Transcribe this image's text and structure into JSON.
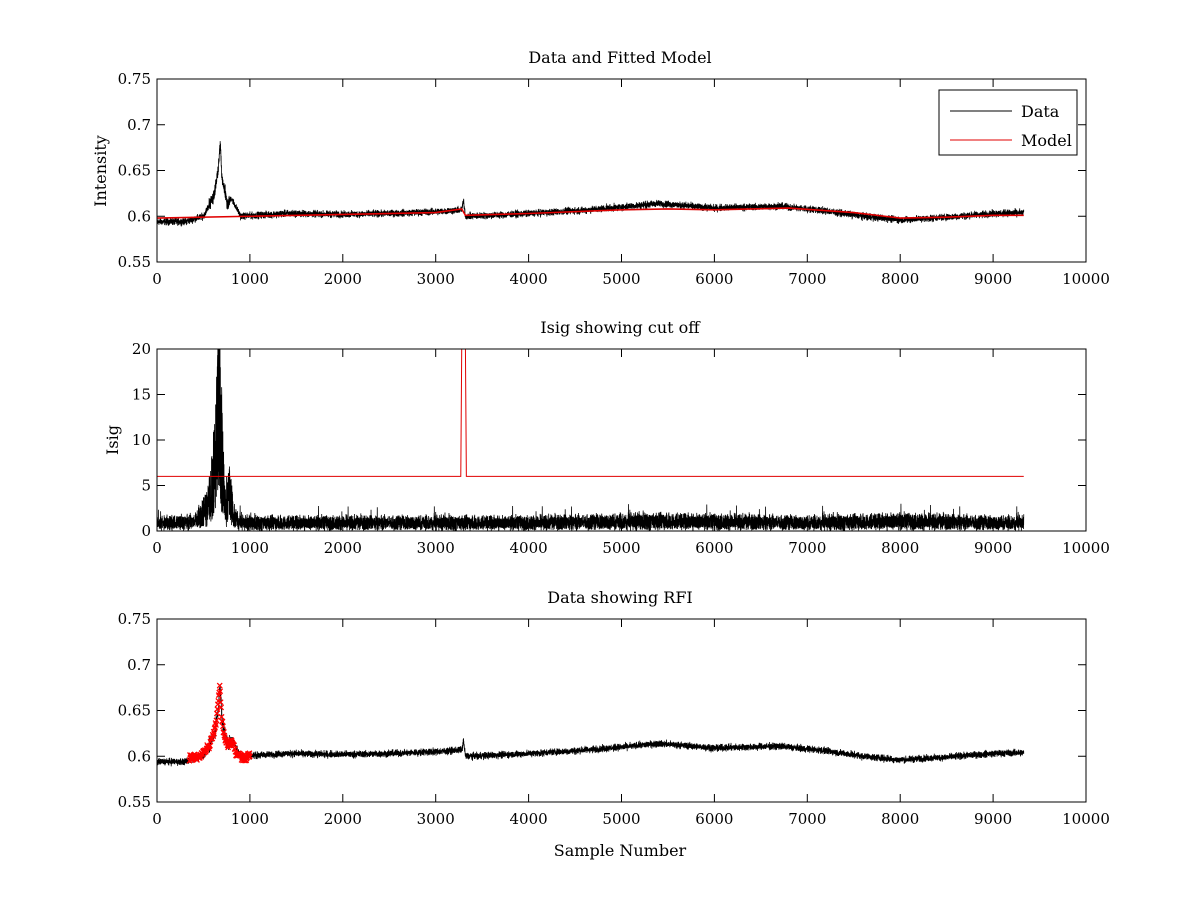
{
  "colors": {
    "data": "#000000",
    "model": "#e00000",
    "rfi": "#ff0000",
    "background": "#ffffff"
  },
  "chart_data": [
    {
      "type": "line",
      "title": "Data and Fitted Model",
      "xlabel": "",
      "ylabel": "Intensity",
      "xlim": [
        0,
        10000
      ],
      "ylim": [
        0.55,
        0.75
      ],
      "xticks": [
        "0",
        "1000",
        "2000",
        "3000",
        "4000",
        "5000",
        "6000",
        "7000",
        "8000",
        "9000",
        "10000"
      ],
      "yticks": [
        "0.55",
        "0.6",
        "0.65",
        "0.7",
        "0.75"
      ],
      "grid": false,
      "legend": {
        "placement": "top-right",
        "entries": [
          "Data",
          "Model"
        ]
      },
      "series": [
        {
          "name": "Data",
          "kind": "noisy",
          "x": [
            0,
            300,
            500,
            560,
            620,
            660,
            680,
            700,
            760,
            800,
            900,
            1400,
            2000,
            2500,
            3000,
            3280,
            3300,
            3320,
            3600,
            4000,
            4500,
            5000,
            5400,
            6000,
            6700,
            7200,
            7600,
            8000,
            8500,
            9000,
            9330
          ],
          "y": [
            0.594,
            0.594,
            0.6,
            0.612,
            0.625,
            0.652,
            0.678,
            0.64,
            0.612,
            0.62,
            0.6,
            0.603,
            0.602,
            0.603,
            0.605,
            0.607,
            0.617,
            0.6,
            0.601,
            0.603,
            0.606,
            0.61,
            0.614,
            0.609,
            0.611,
            0.606,
            0.6,
            0.596,
            0.599,
            0.603,
            0.604
          ],
          "noise": 0.0045
        },
        {
          "name": "Model",
          "kind": "smooth",
          "x": [
            0,
            1000,
            2000,
            3000,
            3280,
            3320,
            4000,
            5000,
            5500,
            6000,
            6800,
            7500,
            8000,
            8500,
            9000,
            9330
          ],
          "y": [
            0.598,
            0.6,
            0.602,
            0.604,
            0.608,
            0.601,
            0.603,
            0.607,
            0.608,
            0.607,
            0.609,
            0.604,
            0.598,
            0.599,
            0.601,
            0.601
          ]
        }
      ]
    },
    {
      "type": "line",
      "title": "Isig showing cut off",
      "xlabel": "",
      "ylabel": "Isig",
      "xlim": [
        0,
        10000
      ],
      "ylim": [
        0,
        20
      ],
      "xticks": [
        "0",
        "1000",
        "2000",
        "3000",
        "4000",
        "5000",
        "6000",
        "7000",
        "8000",
        "9000",
        "10000"
      ],
      "yticks": [
        "0",
        "5",
        "10",
        "15",
        "20"
      ],
      "grid": false,
      "series": [
        {
          "name": "Isig",
          "kind": "isig",
          "x": [
            0,
            400,
            550,
            600,
            640,
            670,
            700,
            730,
            780,
            820,
            900,
            2000,
            4000,
            5400,
            7000,
            8000,
            9000,
            9330
          ],
          "y": [
            1.0,
            1.1,
            3.0,
            6.0,
            11.0,
            18.5,
            9.0,
            3.0,
            5.0,
            2.0,
            1.0,
            1.0,
            1.0,
            1.2,
            1.0,
            1.2,
            1.0,
            1.0
          ]
        },
        {
          "name": "Cut off",
          "kind": "step",
          "x": [
            0,
            3270,
            3280,
            3320,
            3330,
            9330
          ],
          "y": [
            6,
            6,
            20,
            20,
            6,
            6
          ]
        }
      ]
    },
    {
      "type": "scatter",
      "title": "Data showing RFI",
      "xlabel": "Sample Number",
      "ylabel": "",
      "xlim": [
        0,
        10000
      ],
      "ylim": [
        0.55,
        0.75
      ],
      "xticks": [
        "0",
        "1000",
        "2000",
        "3000",
        "4000",
        "5000",
        "6000",
        "7000",
        "8000",
        "9000",
        "10000"
      ],
      "yticks": [
        "0.55",
        "0.6",
        "0.65",
        "0.7",
        "0.75"
      ],
      "grid": false,
      "series": [
        {
          "name": "Data",
          "kind": "noisy",
          "x": [
            0,
            300,
            500,
            560,
            620,
            660,
            680,
            700,
            760,
            800,
            900,
            1400,
            2000,
            2500,
            3000,
            3280,
            3300,
            3320,
            3600,
            4000,
            4500,
            5000,
            5400,
            6000,
            6700,
            7200,
            7600,
            8000,
            8500,
            9000,
            9330
          ],
          "y": [
            0.594,
            0.594,
            0.6,
            0.612,
            0.625,
            0.652,
            0.678,
            0.64,
            0.612,
            0.62,
            0.6,
            0.603,
            0.602,
            0.603,
            0.605,
            0.607,
            0.617,
            0.6,
            0.601,
            0.603,
            0.606,
            0.61,
            0.614,
            0.609,
            0.611,
            0.606,
            0.6,
            0.596,
            0.599,
            0.603,
            0.604
          ],
          "noise": 0.0045
        },
        {
          "name": "RFI",
          "kind": "markers",
          "x": [
            350,
            450,
            520,
            560,
            600,
            640,
            660,
            675,
            690,
            720,
            760,
            800,
            850,
            900,
            950,
            1000
          ],
          "y": [
            0.598,
            0.6,
            0.606,
            0.612,
            0.622,
            0.64,
            0.662,
            0.679,
            0.65,
            0.624,
            0.612,
            0.618,
            0.603,
            0.6,
            0.599,
            0.601
          ]
        }
      ]
    }
  ]
}
